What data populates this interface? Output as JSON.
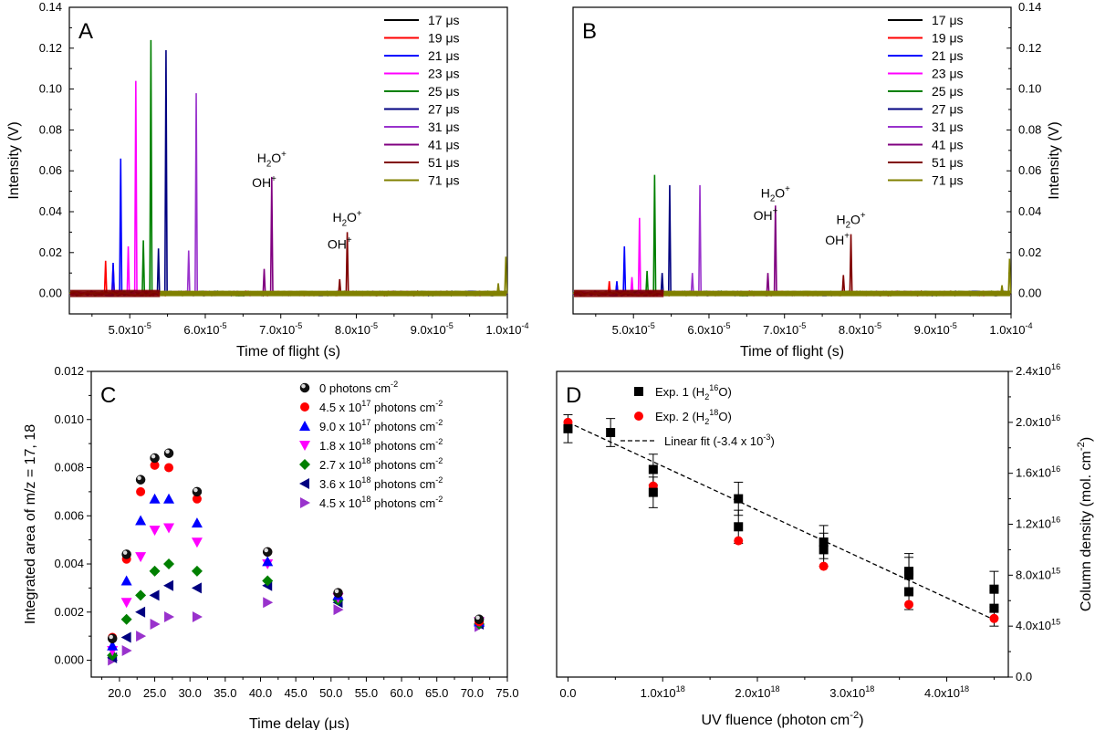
{
  "chart_data": [
    {
      "panel": "A",
      "type": "line",
      "title": "A",
      "xlabel": "Time of flight (s)",
      "ylabel": "Intensity (V)",
      "ylabel_side": "left",
      "xlim": [
        4.2e-05,
        0.0001
      ],
      "ylim": [
        -0.01,
        0.14
      ],
      "xticks": [
        5e-05,
        6e-05,
        7e-05,
        8e-05,
        9e-05,
        0.0001
      ],
      "xtick_labels": [
        "5.0x10",
        "6.0x10",
        "7.0x10",
        "8.0x10",
        "9.0x10",
        "1.0x10"
      ],
      "xtick_exps": [
        "-5",
        "-5",
        "-5",
        "-5",
        "-5",
        "-4"
      ],
      "yticks": [
        0.0,
        0.02,
        0.04,
        0.06,
        0.08,
        0.1,
        0.12,
        0.14
      ],
      "ytick_labels": [
        "0.00",
        "0.02",
        "0.04",
        "0.06",
        "0.08",
        "0.10",
        "0.12",
        "0.14"
      ],
      "legend_position": "top-right",
      "series": [
        {
          "name": "17",
          "unit": "μs",
          "color": "#000000",
          "delay_us": 17,
          "peaks": []
        },
        {
          "name": "19",
          "unit": "μs",
          "color": "#ff0000",
          "delay_us": 19,
          "peaks": [
            [
              4.68e-05,
              0.016
            ],
            [
              4.78e-05,
              0.014
            ]
          ]
        },
        {
          "name": "21",
          "unit": "μs",
          "color": "#0000ff",
          "delay_us": 21,
          "peaks": [
            [
              4.78e-05,
              0.015
            ],
            [
              4.88e-05,
              0.066
            ]
          ]
        },
        {
          "name": "23",
          "unit": "μs",
          "color": "#ff00ff",
          "delay_us": 23,
          "peaks": [
            [
              4.98e-05,
              0.023
            ],
            [
              5.08e-05,
              0.104
            ]
          ]
        },
        {
          "name": "25",
          "unit": "μs",
          "color": "#008000",
          "delay_us": 25,
          "peaks": [
            [
              5.18e-05,
              0.026
            ],
            [
              5.28e-05,
              0.124
            ]
          ]
        },
        {
          "name": "27",
          "unit": "μs",
          "color": "#000080",
          "delay_us": 27,
          "peaks": [
            [
              5.38e-05,
              0.022
            ],
            [
              5.48e-05,
              0.119
            ]
          ]
        },
        {
          "name": "31",
          "unit": "μs",
          "color": "#9932cc",
          "delay_us": 31,
          "peaks": [
            [
              5.78e-05,
              0.021
            ],
            [
              5.88e-05,
              0.098
            ]
          ]
        },
        {
          "name": "41",
          "unit": "μs",
          "color": "#800080",
          "delay_us": 41,
          "peaks": [
            [
              6.78e-05,
              0.012
            ],
            [
              6.88e-05,
              0.057
            ]
          ]
        },
        {
          "name": "51",
          "unit": "μs",
          "color": "#800000",
          "delay_us": 51,
          "peaks": [
            [
              7.78e-05,
              0.007
            ],
            [
              7.88e-05,
              0.03
            ]
          ]
        },
        {
          "name": "71",
          "unit": "μs",
          "color": "#808000",
          "delay_us": 71,
          "peaks": [
            [
              9.88e-05,
              0.005
            ],
            [
              9.98e-05,
              0.018
            ]
          ]
        }
      ],
      "annotations": [
        {
          "text": "OH",
          "sup": "+",
          "x": 6.78e-05,
          "y": 0.052
        },
        {
          "text": "H",
          "sub": "2",
          "text2": "O",
          "sup": "+",
          "x": 6.88e-05,
          "y": 0.064
        },
        {
          "text": "OH",
          "sup": "+",
          "x": 7.78e-05,
          "y": 0.022
        },
        {
          "text": "H",
          "sub": "2",
          "text2": "O",
          "sup": "+",
          "x": 7.88e-05,
          "y": 0.035
        }
      ]
    },
    {
      "panel": "B",
      "type": "line",
      "title": "B",
      "xlabel": "Time of flight (s)",
      "ylabel": "Intensity (V)",
      "ylabel_side": "right",
      "xlim": [
        4.2e-05,
        0.0001
      ],
      "ylim": [
        -0.01,
        0.14
      ],
      "xticks": [
        5e-05,
        6e-05,
        7e-05,
        8e-05,
        9e-05,
        0.0001
      ],
      "xtick_labels": [
        "5.0x10",
        "6.0x10",
        "7.0x10",
        "8.0x10",
        "9.0x10",
        "1.0x10"
      ],
      "xtick_exps": [
        "-5",
        "-5",
        "-5",
        "-5",
        "-5",
        "-4"
      ],
      "yticks": [
        0.0,
        0.02,
        0.04,
        0.06,
        0.08,
        0.1,
        0.12,
        0.14
      ],
      "ytick_labels": [
        "0.00",
        "0.02",
        "0.04",
        "0.06",
        "0.08",
        "0.10",
        "0.12",
        "0.14"
      ],
      "legend_position": "top-right",
      "series": [
        {
          "name": "17",
          "unit": "μs",
          "color": "#000000",
          "delay_us": 17,
          "peaks": []
        },
        {
          "name": "19",
          "unit": "μs",
          "color": "#ff0000",
          "delay_us": 19,
          "peaks": [
            [
              4.68e-05,
              0.006
            ],
            [
              4.78e-05,
              0.005
            ]
          ]
        },
        {
          "name": "21",
          "unit": "μs",
          "color": "#0000ff",
          "delay_us": 21,
          "peaks": [
            [
              4.78e-05,
              0.006
            ],
            [
              4.88e-05,
              0.023
            ]
          ]
        },
        {
          "name": "23",
          "unit": "μs",
          "color": "#ff00ff",
          "delay_us": 23,
          "peaks": [
            [
              4.98e-05,
              0.008
            ],
            [
              5.08e-05,
              0.037
            ]
          ]
        },
        {
          "name": "25",
          "unit": "μs",
          "color": "#008000",
          "delay_us": 25,
          "peaks": [
            [
              5.18e-05,
              0.011
            ],
            [
              5.28e-05,
              0.058
            ]
          ]
        },
        {
          "name": "27",
          "unit": "μs",
          "color": "#000080",
          "delay_us": 27,
          "peaks": [
            [
              5.38e-05,
              0.01
            ],
            [
              5.48e-05,
              0.053
            ]
          ]
        },
        {
          "name": "31",
          "unit": "μs",
          "color": "#9932cc",
          "delay_us": 31,
          "peaks": [
            [
              5.78e-05,
              0.01
            ],
            [
              5.88e-05,
              0.053
            ]
          ]
        },
        {
          "name": "41",
          "unit": "μs",
          "color": "#800080",
          "delay_us": 41,
          "peaks": [
            [
              6.78e-05,
              0.01
            ],
            [
              6.88e-05,
              0.043
            ]
          ]
        },
        {
          "name": "51",
          "unit": "μs",
          "color": "#800000",
          "delay_us": 51,
          "peaks": [
            [
              7.78e-05,
              0.009
            ],
            [
              7.88e-05,
              0.029
            ]
          ]
        },
        {
          "name": "71",
          "unit": "μs",
          "color": "#808000",
          "delay_us": 71,
          "peaks": [
            [
              9.88e-05,
              0.004
            ],
            [
              9.98e-05,
              0.017
            ]
          ]
        }
      ],
      "annotations": [
        {
          "text": "OH",
          "sup": "+",
          "x": 6.75e-05,
          "y": 0.036
        },
        {
          "text": "H",
          "sub": "2",
          "text2": "O",
          "sup": "+",
          "x": 6.88e-05,
          "y": 0.047
        },
        {
          "text": "OH",
          "sup": "+",
          "x": 7.7e-05,
          "y": 0.024
        },
        {
          "text": "H",
          "sub": "2",
          "text2": "O",
          "sup": "+",
          "x": 7.88e-05,
          "y": 0.034
        }
      ]
    },
    {
      "panel": "C",
      "type": "scatter",
      "title": "C",
      "xlabel": "Time delay (μs)",
      "ylabel": "Integrated area of m/z = 17, 18",
      "xlim": [
        16,
        75
      ],
      "ylim": [
        -0.0007,
        0.012
      ],
      "xticks": [
        20,
        25,
        30,
        35,
        40,
        45,
        50,
        55,
        60,
        65,
        70,
        75
      ],
      "xtick_labels": [
        "20.0",
        "25.0",
        "30.0",
        "35.0",
        "40.0",
        "45.0",
        "50.0",
        "55.0",
        "60.0",
        "65.0",
        "70.0",
        "75.0"
      ],
      "yticks": [
        0.0,
        0.002,
        0.004,
        0.006,
        0.008,
        0.01,
        0.012
      ],
      "ytick_labels": [
        "0.000",
        "0.002",
        "0.004",
        "0.006",
        "0.008",
        "0.010",
        "0.012"
      ],
      "legend_position": "top-right",
      "x": [
        19,
        21,
        23,
        25,
        27,
        31,
        41,
        51,
        71
      ],
      "series": [
        {
          "name": "0  photons cm",
          "sup": "-2",
          "marker": "sphere",
          "color": "#000000",
          "values": [
            0.0009,
            0.0044,
            0.0075,
            0.0084,
            0.0086,
            0.007,
            0.0045,
            0.0028,
            0.0017
          ]
        },
        {
          "name": "4.5 x 10",
          "exp": "17",
          "suffix": " photons cm",
          "sup": "-2",
          "marker": "circle",
          "color": "#ff0000",
          "values": [
            0.00095,
            0.0042,
            0.007,
            0.0081,
            0.008,
            0.0067,
            0.0045,
            0.0028,
            0.0016
          ]
        },
        {
          "name": "9.0 x 10",
          "exp": "17",
          "suffix": " photons cm",
          "sup": "-2",
          "marker": "triangle-up",
          "color": "#0000ff",
          "values": [
            0.0006,
            0.0033,
            0.0058,
            0.0067,
            0.0067,
            0.0057,
            0.0041,
            0.0027,
            0.0016
          ]
        },
        {
          "name": "1.8 x 10",
          "exp": "18",
          "suffix": " photons cm",
          "sup": "-2",
          "marker": "triangle-down",
          "color": "#ff00ff",
          "values": [
            0.0004,
            0.0024,
            0.0043,
            0.0054,
            0.0055,
            0.0049,
            0.004,
            0.0026,
            0.0016
          ]
        },
        {
          "name": "2.7 x 10",
          "exp": "18",
          "suffix": " photons cm",
          "sup": "-2",
          "marker": "diamond",
          "color": "#008000",
          "values": [
            0.0002,
            0.0017,
            0.0027,
            0.0037,
            0.004,
            0.0037,
            0.0033,
            0.0025,
            0.0015
          ]
        },
        {
          "name": "3.6 x 10",
          "exp": "18",
          "suffix": " photons cm",
          "sup": "-2",
          "marker": "triangle-left",
          "color": "#000080",
          "values": [
            0.0001,
            0.00095,
            0.002,
            0.0027,
            0.0031,
            0.003,
            0.0031,
            0.0024,
            0.0015
          ]
        },
        {
          "name": "4.5 x 10",
          "exp": "18",
          "suffix": " photons cm",
          "sup": "-2",
          "marker": "triangle-right",
          "color": "#9932cc",
          "values": [
            0.0,
            0.0004,
            0.001,
            0.0015,
            0.0018,
            0.0018,
            0.0024,
            0.0021,
            0.0014
          ]
        }
      ]
    },
    {
      "panel": "D",
      "type": "scatter",
      "title": "D",
      "xlabel": "UV fluence (photon cm",
      "xlabel_sup": "-2",
      "xlabel_end": ")",
      "ylabel": "Column density (mol. cm",
      "ylabel_sup": "-2",
      "ylabel_end": ")",
      "ylabel_side": "right",
      "xlim": [
        -1.2e+17,
        4.65e+18
      ],
      "ylim": [
        0,
        2.4e+16
      ],
      "xticks": [
        0,
        1e+18,
        2e+18,
        3e+18,
        4e+18
      ],
      "xtick_labels": [
        "0.0",
        "1.0x10",
        "2.0x10",
        "3.0x10",
        "4.0x10"
      ],
      "xtick_exps": [
        "",
        "18",
        "18",
        "18",
        "18"
      ],
      "yticks": [
        0,
        4000000000000000.0,
        8000000000000000.0,
        1.2e+16,
        1.6e+16,
        2e+16,
        2.4e+16
      ],
      "ytick_labels": [
        "0.0",
        "4.0x10",
        "8.0x10",
        "1.2x10",
        "1.6x10",
        "2.0x10",
        "2.4x10"
      ],
      "ytick_exps": [
        "",
        "15",
        "15",
        "16",
        "16",
        "16",
        "16"
      ],
      "legend_position": "top-right",
      "series": [
        {
          "name": "Exp. 1 (H",
          "sub": "2",
          "sup": "16",
          "suffix": "O)",
          "marker": "square",
          "color": "#000000",
          "points": [
            [
              0.0,
              1.95e+16,
              1100000000000000.0
            ],
            [
              4.5e+17,
              1.92e+16,
              1100000000000000.0
            ],
            [
              9e+17,
              1.63e+16,
              1200000000000000.0
            ],
            [
              9e+17,
              1.45e+16,
              1200000000000000.0
            ],
            [
              1.8e+18,
              1.4e+16,
              1300000000000000.0
            ],
            [
              1.8e+18,
              1.18e+16,
              1300000000000000.0
            ],
            [
              2.7e+18,
              1.06e+16,
              1300000000000000.0
            ],
            [
              2.7e+18,
              1e+16,
              1300000000000000.0
            ],
            [
              3.6e+18,
              8300000000000000.0,
              1400000000000000.0
            ],
            [
              3.6e+18,
              8000000000000000.0,
              1400000000000000.0
            ],
            [
              3.6e+18,
              6700000000000000.0,
              1400000000000000.0
            ],
            [
              4.5e+18,
              6900000000000000.0,
              1400000000000000.0
            ],
            [
              4.5e+18,
              5400000000000000.0,
              1400000000000000.0
            ]
          ]
        },
        {
          "name": "Exp. 2 (H",
          "sub": "2",
          "sup": "18",
          "suffix": "O)",
          "marker": "circle",
          "color": "#ff0000",
          "points": [
            [
              0.0,
              2e+16,
              0
            ],
            [
              9e+17,
              1.5e+16,
              0
            ],
            [
              1.8e+18,
              1.07e+16,
              0
            ],
            [
              2.7e+18,
              8700000000000000.0,
              0
            ],
            [
              3.6e+18,
              5700000000000000.0,
              0
            ],
            [
              4.5e+18,
              4600000000000000.0,
              0
            ]
          ]
        },
        {
          "name": "Linear fit  (-3.4 x 10",
          "sup": "-3",
          "suffix": ")",
          "marker": "dashed-line",
          "color": "#000000",
          "line": [
            [
              0.0,
              2e+16
            ],
            [
              4.5e+18,
              4500000000000000.0
            ]
          ]
        }
      ]
    }
  ]
}
